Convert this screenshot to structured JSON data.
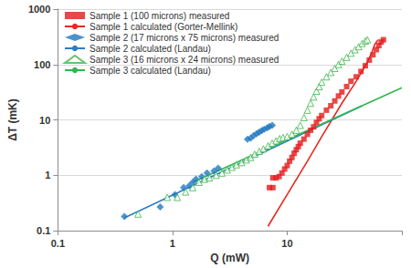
{
  "chart_data": {
    "type": "scatter",
    "x_label": "Q (mW)",
    "y_label": "ΔT (mK)",
    "log": true,
    "grid": "y",
    "legend": "upper left",
    "xlim": [
      0.1,
      100
    ],
    "xticks": [
      0.1,
      1,
      10
    ],
    "ylim": [
      0.1,
      1000
    ],
    "yticks": [
      0.1,
      1,
      10,
      100,
      1000
    ],
    "series": [
      {
        "name": "Sample 1 (100 microns) measured",
        "type": "scatter",
        "marker": "square",
        "color": "#e41a1c",
        "x": [
          7,
          7.5,
          7.5,
          8,
          8.5,
          9,
          9.5,
          10,
          10.5,
          11,
          11.5,
          12,
          12.5,
          13,
          14,
          15,
          16,
          17,
          18,
          19,
          20,
          22,
          24,
          26,
          28,
          30,
          33,
          36,
          40,
          44,
          48,
          52,
          56,
          60,
          63,
          66,
          69
        ],
        "values": [
          0.6,
          0.6,
          0.9,
          0.9,
          0.95,
          1.1,
          1.3,
          1.5,
          1.8,
          2.1,
          2.5,
          2.9,
          3.3,
          3.8,
          4.5,
          5.5,
          6.5,
          7.5,
          9,
          10.5,
          12,
          15,
          18,
          22,
          27,
          32,
          40,
          50,
          60,
          75,
          95,
          120,
          150,
          185,
          220,
          255,
          280
        ]
      },
      {
        "name": "Sample 1 calculated (Gorter-Mellink)",
        "type": "line",
        "line_style": "solid",
        "color": "#e8281e",
        "x": [
          6.8,
          10,
          15,
          20,
          30,
          40,
          50,
          55,
          58,
          62
        ],
        "values": [
          0.12,
          0.45,
          1.8,
          5,
          20,
          50,
          110,
          170,
          230,
          280
        ]
      },
      {
        "name": "Sample 2 (17 microns x 75 microns) measured",
        "type": "scatter",
        "marker": "diamond",
        "color": "#1f78c1",
        "x": [
          0.38,
          0.78,
          1.05,
          1.25,
          1.4,
          1.5,
          1.6,
          1.8,
          2.0,
          2.3,
          2.5,
          4.5,
          4.8,
          5.1,
          5.4,
          5.7,
          6.0,
          6.3,
          6.7,
          7.0,
          7.4
        ],
        "values": [
          0.18,
          0.27,
          0.45,
          0.6,
          0.65,
          0.75,
          0.85,
          0.95,
          1.1,
          1.2,
          1.35,
          4.5,
          4.7,
          5.2,
          5.6,
          6.0,
          6.4,
          6.8,
          7.2,
          7.6,
          8.0
        ]
      },
      {
        "name": "Sample 2 calculated (Landau)",
        "type": "line",
        "line_style": "solid",
        "color": "#2e7dc8",
        "x": [
          0.38,
          45
        ],
        "values": [
          0.17,
          18
        ]
      },
      {
        "name": "Sample 3 (16 microns x 24 microns) measured",
        "type": "scatter",
        "marker": "triangle_open",
        "color": "#3cb54a",
        "x": [
          0.5,
          0.9,
          1.1,
          1.3,
          1.5,
          1.7,
          1.9,
          2.1,
          2.4,
          2.7,
          3.0,
          3.3,
          3.6,
          4.0,
          4.4,
          4.8,
          5.2,
          5.7,
          6.2,
          6.8,
          7.4,
          8.0,
          8.6,
          9.2,
          10,
          11,
          12,
          13,
          14,
          15,
          16,
          17,
          18,
          19,
          20,
          22,
          24,
          26,
          28,
          30,
          33,
          36,
          39,
          42,
          45,
          48,
          50
        ],
        "values": [
          0.2,
          0.4,
          0.4,
          0.5,
          0.6,
          0.75,
          0.85,
          0.9,
          1.0,
          1.1,
          1.25,
          1.4,
          1.55,
          1.7,
          1.9,
          2.1,
          2.4,
          2.7,
          3.0,
          3.4,
          3.8,
          4.2,
          4.6,
          4.8,
          5,
          5.5,
          6.5,
          8,
          11,
          15,
          20,
          26,
          33,
          40,
          48,
          60,
          72,
          85,
          100,
          115,
          135,
          160,
          185,
          210,
          240,
          265,
          280
        ]
      },
      {
        "name": "Sample 3 calculated (Landau)",
        "type": "line",
        "line_style": "solid",
        "color": "#2eb84b",
        "x": [
          1.5,
          100
        ],
        "values": [
          0.75,
          38
        ]
      }
    ]
  }
}
